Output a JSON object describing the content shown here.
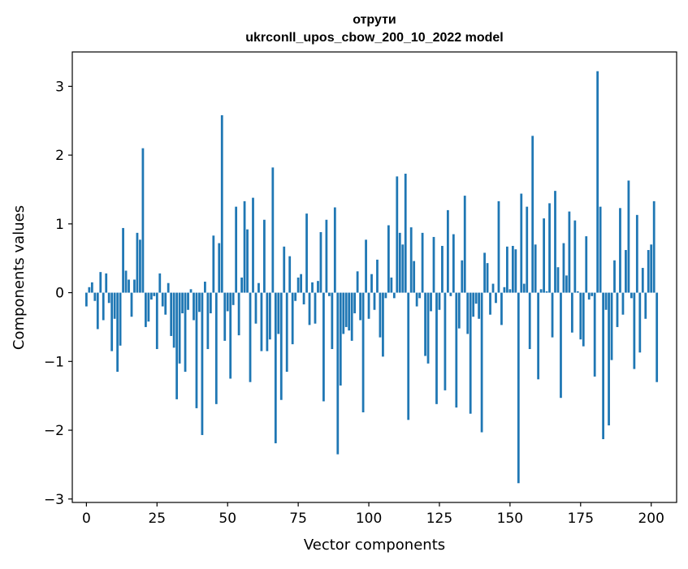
{
  "chart_data": {
    "type": "bar",
    "title": "отрути",
    "subtitle": "ukrconll_upos_cbow_200_10_2022 model",
    "xlabel": "Vector components",
    "ylabel": "Components values",
    "xlim": [
      -5,
      209
    ],
    "ylim": [
      -3.05,
      3.5
    ],
    "xticks": [
      0,
      25,
      50,
      75,
      100,
      125,
      150,
      175,
      200
    ],
    "yticks": [
      -3,
      -2,
      -1,
      0,
      1,
      2,
      3
    ],
    "ytick_labels": [
      "−3",
      "−2",
      "−1",
      "0",
      "1",
      "2",
      "3"
    ],
    "bar_color": "#1f77b4",
    "values": [
      -0.2,
      0.08,
      0.15,
      -0.12,
      -0.53,
      0.3,
      -0.4,
      0.28,
      -0.15,
      -0.85,
      -0.38,
      -1.15,
      -0.77,
      0.94,
      0.32,
      0.19,
      -0.35,
      0.19,
      0.87,
      0.77,
      2.1,
      -0.5,
      -0.42,
      -0.1,
      -0.05,
      -0.82,
      0.28,
      -0.2,
      -0.32,
      0.14,
      -0.63,
      -0.8,
      -1.55,
      -1.03,
      -0.3,
      -1.15,
      -0.25,
      0.05,
      -0.4,
      -1.68,
      -0.28,
      -2.07,
      0.16,
      -0.82,
      -0.3,
      0.83,
      -1.62,
      0.72,
      2.58,
      -0.7,
      -0.27,
      -1.25,
      -0.18,
      1.25,
      -0.62,
      0.22,
      1.33,
      0.92,
      -1.3,
      1.38,
      -0.45,
      0.14,
      -0.85,
      1.06,
      -0.85,
      -0.68,
      1.82,
      -2.19,
      -0.6,
      -1.56,
      0.67,
      -1.15,
      0.53,
      -0.75,
      -0.12,
      0.22,
      0.27,
      -0.17,
      1.15,
      -0.47,
      0.15,
      -0.45,
      0.17,
      0.88,
      -1.58,
      1.06,
      -0.05,
      -0.82,
      1.24,
      -2.35,
      -1.35,
      -0.6,
      -0.5,
      -0.55,
      -0.7,
      -0.3,
      0.31,
      -0.4,
      -1.74,
      0.77,
      -0.38,
      0.27,
      -0.25,
      0.48,
      -0.65,
      -0.93,
      -0.08,
      0.98,
      0.22,
      -0.08,
      1.69,
      0.87,
      0.7,
      1.73,
      -1.85,
      0.95,
      0.46,
      -0.2,
      -0.08,
      0.87,
      -0.92,
      -1.03,
      -0.27,
      0.81,
      -1.62,
      -0.25,
      0.68,
      -1.42,
      1.2,
      -0.05,
      0.85,
      -1.67,
      -0.52,
      0.47,
      1.41,
      -0.6,
      -1.76,
      -0.35,
      -0.16,
      -0.38,
      -2.03,
      0.58,
      0.43,
      -0.32,
      0.13,
      -0.15,
      1.33,
      -0.47,
      0.08,
      0.67,
      0.05,
      0.68,
      0.63,
      -2.77,
      1.44,
      0.13,
      1.25,
      -0.82,
      2.28,
      0.7,
      -1.26,
      0.05,
      1.08,
      0.02,
      1.3,
      -0.65,
      1.48,
      0.37,
      -1.53,
      0.72,
      0.25,
      1.18,
      -0.58,
      1.05,
      0.02,
      -0.68,
      -0.78,
      0.82,
      -0.1,
      -0.05,
      -1.22,
      3.22,
      1.25,
      -2.13,
      -0.25,
      -1.93,
      -0.98,
      0.47,
      -0.5,
      1.23,
      -0.32,
      0.62,
      1.63,
      -0.08,
      -1.11,
      1.13,
      -0.87,
      0.36,
      -0.38,
      0.62,
      0.7,
      1.33,
      -1.3
    ]
  }
}
